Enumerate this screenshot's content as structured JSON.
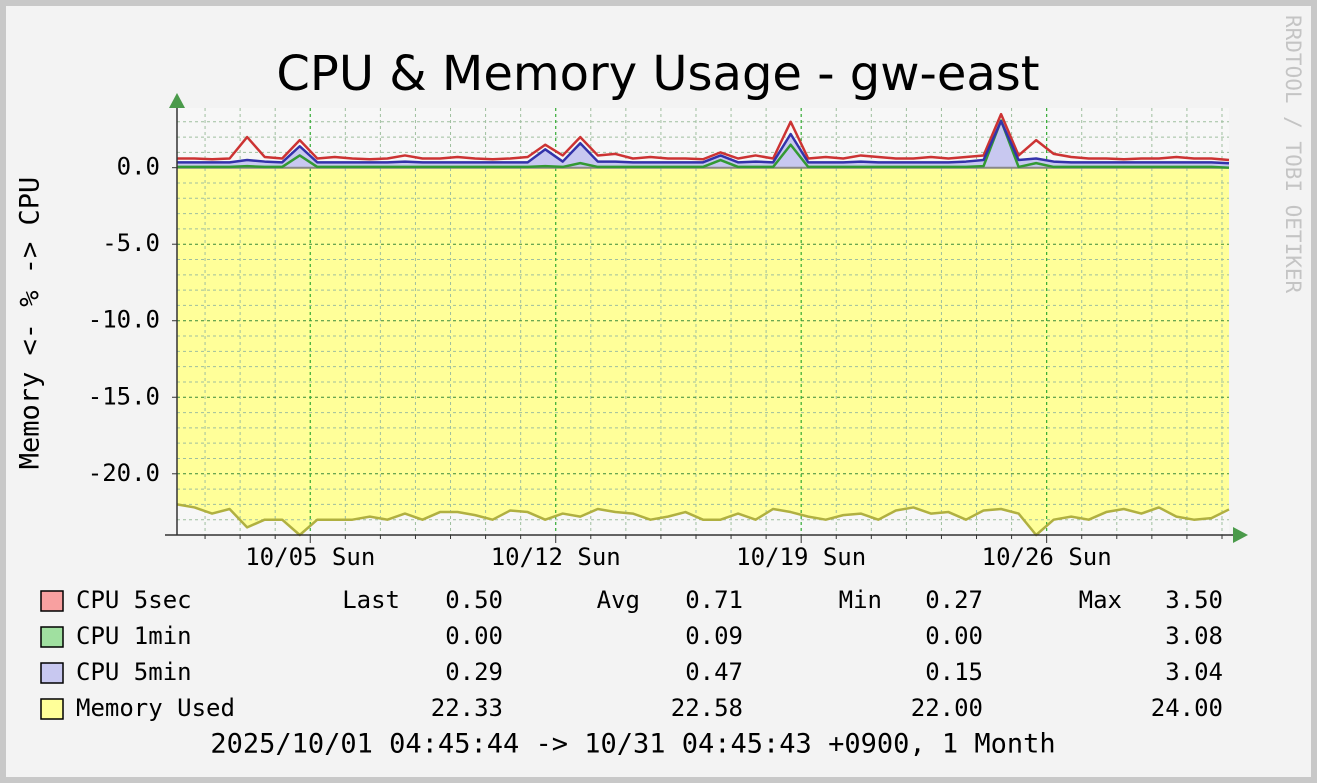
{
  "chart_data": {
    "type": "line",
    "title": "CPU & Memory Usage - gw-east",
    "y_label": "Memory <- % -> CPU",
    "watermark": "RRDTOOL / TOBI OETIKER",
    "footer": "2025/10/01 04:45:44 -> 10/31 04:45:43 +0900, 1 Month",
    "x": [
      1.2,
      1.7,
      2.2,
      2.7,
      3.2,
      3.7,
      4.2,
      4.7,
      5.2,
      5.7,
      6.2,
      6.7,
      7.2,
      7.7,
      8.2,
      8.7,
      9.2,
      9.7,
      10.2,
      10.7,
      11.2,
      11.7,
      12.2,
      12.7,
      13.2,
      13.7,
      14.2,
      14.7,
      15.2,
      15.7,
      16.2,
      16.7,
      17.2,
      17.7,
      18.2,
      18.7,
      19.2,
      19.7,
      20.2,
      20.7,
      21.2,
      21.7,
      22.2,
      22.7,
      23.2,
      23.7,
      24.2,
      24.7,
      25.2,
      25.7,
      26.2,
      26.7,
      27.2,
      27.7,
      28.2,
      28.7,
      29.2,
      29.7,
      30.2,
      30.7,
      31.2
    ],
    "xlim": [
      1.2,
      31.2
    ],
    "xticks": [
      {
        "value": 5,
        "label": "10/05 Sun"
      },
      {
        "value": 12,
        "label": "10/12 Sun"
      },
      {
        "value": 19,
        "label": "10/19 Sun"
      },
      {
        "value": 26,
        "label": "10/26 Sun"
      }
    ],
    "x_minor_ticks": [
      2,
      3,
      4,
      6,
      7,
      8,
      9,
      10,
      11,
      13,
      14,
      15,
      16,
      17,
      18,
      20,
      21,
      22,
      23,
      24,
      25,
      27,
      28,
      29,
      30,
      31
    ],
    "ylim": [
      -24,
      3.9
    ],
    "yticks": [
      {
        "value": 0,
        "label": "0.0"
      },
      {
        "value": -5,
        "label": "-5.0"
      },
      {
        "value": -10,
        "label": "-10.0"
      },
      {
        "value": -15,
        "label": "-15.0"
      },
      {
        "value": -20,
        "label": "-20.0"
      }
    ],
    "y_minor_ticks": [
      3,
      2,
      1,
      -1,
      -2,
      -3,
      -4,
      -6,
      -7,
      -8,
      -9,
      -11,
      -12,
      -13,
      -14,
      -16,
      -17,
      -18,
      -19,
      -21,
      -22,
      -23
    ],
    "grid": true,
    "stat_labels": [
      "Last",
      "Avg",
      "Min",
      "Max"
    ],
    "series": [
      {
        "name": "CPU 5sec",
        "color": "#cc3333",
        "fill": "#f8a0a0",
        "style": "line",
        "values": [
          0.6,
          0.6,
          0.55,
          0.6,
          2.0,
          0.7,
          0.6,
          1.8,
          0.6,
          0.7,
          0.6,
          0.55,
          0.6,
          0.8,
          0.6,
          0.6,
          0.7,
          0.6,
          0.55,
          0.6,
          0.7,
          1.5,
          0.8,
          2.0,
          0.8,
          0.9,
          0.6,
          0.7,
          0.6,
          0.6,
          0.55,
          1.0,
          0.6,
          0.8,
          0.6,
          3.0,
          0.6,
          0.7,
          0.6,
          0.8,
          0.7,
          0.6,
          0.6,
          0.7,
          0.6,
          0.7,
          0.8,
          3.5,
          0.8,
          1.8,
          0.9,
          0.7,
          0.6,
          0.6,
          0.55,
          0.6,
          0.6,
          0.7,
          0.6,
          0.6,
          0.5
        ],
        "stats": [
          "0.50",
          "0.71",
          "0.27",
          "3.50"
        ]
      },
      {
        "name": "CPU 1min",
        "color": "#339933",
        "fill": "#a0e0a0",
        "style": "area",
        "values": [
          0.05,
          0.05,
          0.05,
          0.05,
          0.1,
          0.05,
          0.05,
          0.8,
          0.05,
          0.05,
          0.05,
          0.05,
          0.05,
          0.05,
          0.05,
          0.05,
          0.05,
          0.05,
          0.05,
          0.05,
          0.05,
          0.1,
          0.05,
          0.3,
          0.05,
          0.05,
          0.05,
          0.05,
          0.05,
          0.05,
          0.05,
          0.5,
          0.05,
          0.05,
          0.05,
          1.5,
          0.05,
          0.05,
          0.05,
          0.05,
          0.05,
          0.05,
          0.05,
          0.05,
          0.05,
          0.05,
          0.1,
          3.08,
          0.05,
          0.3,
          0.05,
          0.05,
          0.05,
          0.05,
          0.05,
          0.05,
          0.05,
          0.05,
          0.05,
          0.05,
          0
        ],
        "stats": [
          "0.00",
          "0.09",
          "0.00",
          "3.08"
        ]
      },
      {
        "name": "CPU 5min",
        "color": "#3333aa",
        "fill": "#c8c8f0",
        "style": "area",
        "values": [
          0.35,
          0.35,
          0.35,
          0.35,
          0.5,
          0.4,
          0.35,
          1.4,
          0.35,
          0.35,
          0.35,
          0.35,
          0.35,
          0.4,
          0.35,
          0.35,
          0.35,
          0.35,
          0.35,
          0.35,
          0.35,
          1.2,
          0.4,
          1.6,
          0.4,
          0.4,
          0.35,
          0.35,
          0.35,
          0.35,
          0.35,
          0.8,
          0.35,
          0.4,
          0.35,
          2.2,
          0.35,
          0.35,
          0.35,
          0.4,
          0.35,
          0.35,
          0.35,
          0.35,
          0.35,
          0.4,
          0.5,
          3.04,
          0.5,
          0.6,
          0.4,
          0.35,
          0.35,
          0.35,
          0.35,
          0.35,
          0.35,
          0.35,
          0.35,
          0.35,
          0.29
        ],
        "stats": [
          "0.29",
          "0.47",
          "0.15",
          "3.04"
        ]
      },
      {
        "name": "Memory Used",
        "color": "#b0b040",
        "fill": "#ffff99",
        "style": "area",
        "values": [
          -22,
          -22.2,
          -22.6,
          -22.3,
          -23.5,
          -23,
          -23,
          -24,
          -23,
          -23,
          -23,
          -22.8,
          -23,
          -22.6,
          -23,
          -22.5,
          -22.5,
          -22.7,
          -23,
          -22.4,
          -22.5,
          -23,
          -22.6,
          -22.8,
          -22.3,
          -22.5,
          -22.6,
          -23,
          -22.8,
          -22.5,
          -23,
          -23,
          -22.6,
          -23,
          -22.3,
          -22.5,
          -22.8,
          -23,
          -22.7,
          -22.6,
          -23,
          -22.4,
          -22.2,
          -22.6,
          -22.5,
          -23,
          -22.4,
          -22.3,
          -22.6,
          -24,
          -23,
          -22.8,
          -23,
          -22.5,
          -22.3,
          -22.6,
          -22.2,
          -22.8,
          -23,
          -22.9,
          -22.33
        ],
        "stats": [
          "22.33",
          "22.58",
          "22.00",
          "24.00"
        ]
      }
    ]
  }
}
